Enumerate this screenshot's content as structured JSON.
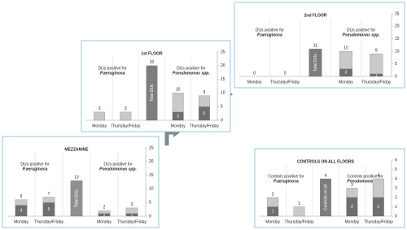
{
  "chart_data": [
    {
      "type": "bar",
      "title": "MEZZANINE",
      "ylim": [
        0,
        25
      ],
      "yticks": [
        0,
        5,
        10,
        15,
        20,
        25
      ],
      "group_labels": [
        [
          "DUs positive for",
          "P.aeruginosa"
        ],
        [
          "DUs positive for",
          "Pseudomonas spp."
        ]
      ],
      "categories": [
        "Monday",
        "Thursday/Friday",
        null,
        "Monday",
        "Thursday/Friday"
      ],
      "series": [
        {
          "color": "#6e6e6e",
          "values": [
            4,
            5,
            null,
            1,
            1
          ]
        },
        {
          "color": "#c9c9c9",
          "values": [
            2,
            2,
            null,
            1,
            2
          ]
        },
        {
          "name": "Total DUs",
          "color": "#8f8f8f",
          "values": [
            null,
            null,
            13,
            null,
            null
          ]
        }
      ],
      "total_labels": [
        6,
        7,
        13,
        2,
        3
      ]
    },
    {
      "type": "bar",
      "title": "1st FLOOR",
      "ylim": [
        0,
        25
      ],
      "yticks": [
        0,
        5,
        10,
        15,
        20,
        25
      ],
      "group_labels": [
        [
          "DUs positive for",
          "P.aeruginosa"
        ],
        [
          "DUs positive for",
          "Pseudomonas spp."
        ]
      ],
      "categories": [
        "Monday",
        "Thursday/Friday",
        null,
        "Monday",
        "Thursday/Friday"
      ],
      "series": [
        {
          "color": "#6e6e6e",
          "values": [
            null,
            null,
            null,
            3,
            5
          ]
        },
        {
          "color": "#c9c9c9",
          "values": [
            3,
            3,
            null,
            7,
            4
          ]
        },
        {
          "name": "Total DUs",
          "color": "#7d7d7d",
          "values": [
            null,
            null,
            20,
            null,
            null
          ]
        }
      ],
      "total_labels": [
        3,
        3,
        20,
        10,
        9
      ]
    },
    {
      "type": "bar",
      "title": "2nd FLOOR",
      "ylim": [
        0,
        25
      ],
      "yticks": [
        0,
        5,
        10,
        15,
        20,
        25
      ],
      "group_labels": [
        [
          "DUs positive for",
          "P.aeruginosa"
        ],
        [
          "DUs positive for",
          "Pseudomonas spp."
        ]
      ],
      "categories": [
        "Monday",
        "Thursday/Friday",
        null,
        "Monday",
        "Thursday/Friday"
      ],
      "series": [
        {
          "color": "#6e6e6e",
          "values": [
            null,
            null,
            null,
            3,
            1
          ]
        },
        {
          "color": "#c9c9c9",
          "values": [
            0,
            0,
            null,
            7,
            8
          ]
        },
        {
          "name": "Total DUs",
          "color": "#7d7d7d",
          "values": [
            null,
            null,
            11,
            null,
            null
          ]
        }
      ],
      "total_labels": [
        0,
        0,
        11,
        10,
        9
      ]
    },
    {
      "type": "bar",
      "title": "CONTROLS ON ALL FLOORS",
      "ylim": [
        0,
        6
      ],
      "yticks": [
        0,
        1,
        2,
        3,
        4,
        5,
        6
      ],
      "group_labels": [
        [
          "Controls positive for",
          "P.aeruginosa"
        ],
        [
          "Controls positive for",
          "Pseudomonas spp"
        ]
      ],
      "categories": [
        "Monday",
        "Thursday/Friday",
        null,
        "Monday",
        "Thursday/Friday"
      ],
      "series": [
        {
          "color": "#6e6e6e",
          "values": [
            1,
            null,
            null,
            2,
            2
          ]
        },
        {
          "color": "#c9c9c9",
          "values": [
            1,
            1,
            null,
            1,
            2
          ]
        },
        {
          "name": "Controls on all",
          "color": "#7d7d7d",
          "values": [
            null,
            null,
            4,
            null,
            null
          ]
        }
      ],
      "total_labels": [
        2,
        1,
        4,
        3,
        4
      ]
    }
  ]
}
